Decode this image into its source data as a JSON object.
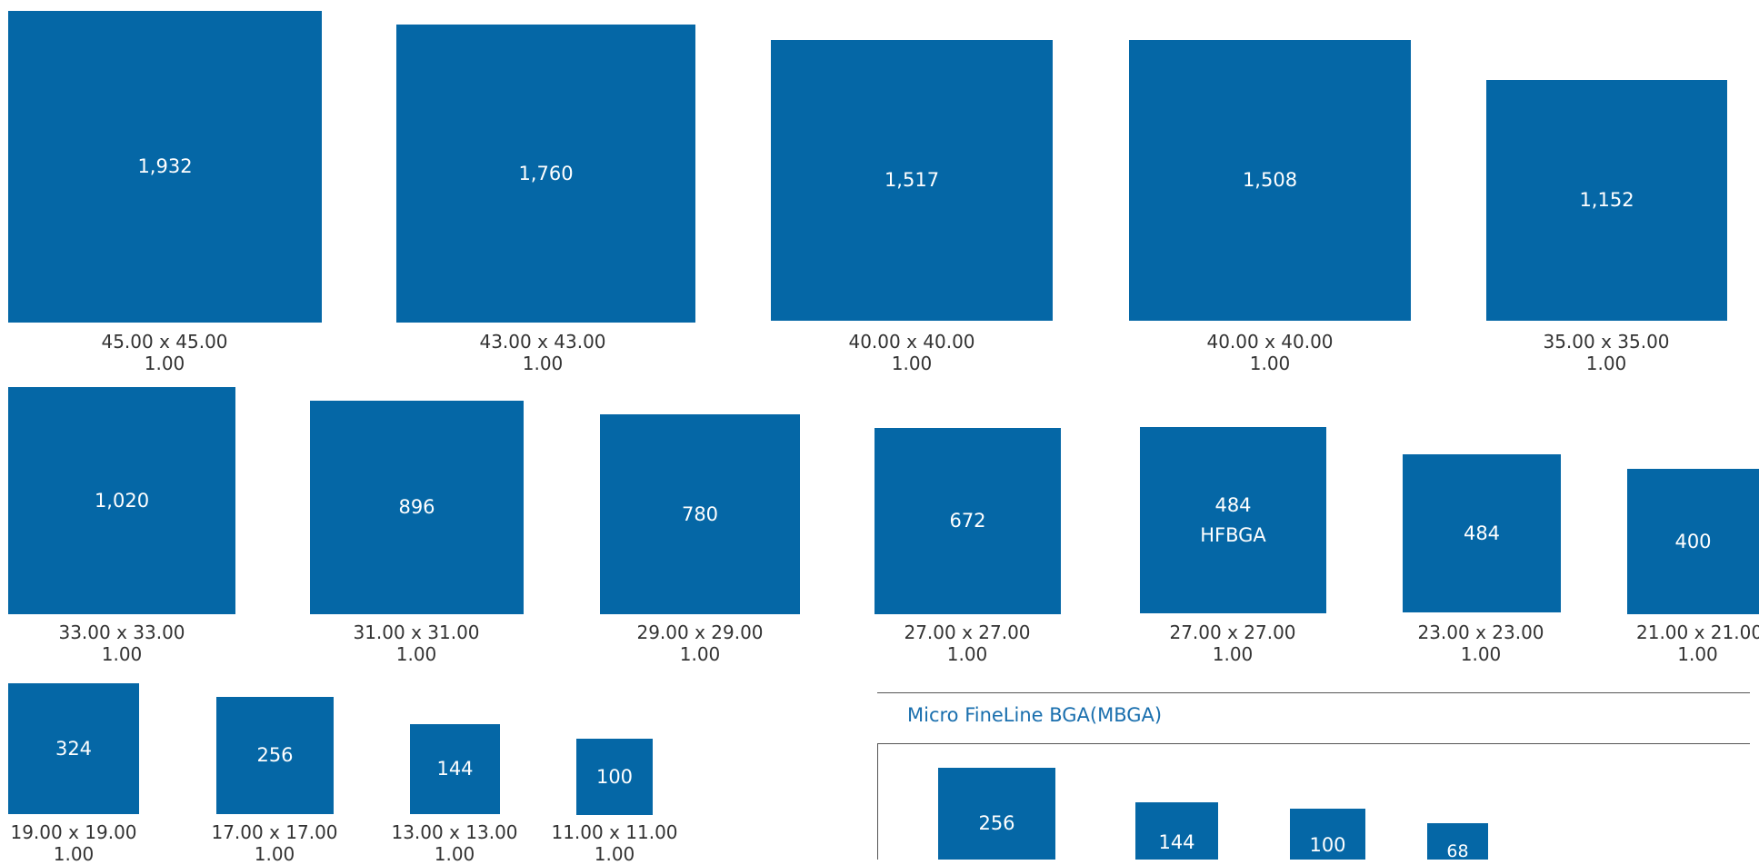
{
  "packages": [
    {
      "id": "p1932",
      "count": "1,932",
      "dims": "45.00 x 45.00",
      "pitch": "1.00"
    },
    {
      "id": "p1760",
      "count": "1,760",
      "dims": "43.00 x 43.00",
      "pitch": "1.00"
    },
    {
      "id": "p1517",
      "count": "1,517",
      "dims": "40.00 x 40.00",
      "pitch": "1.00"
    },
    {
      "id": "p1508",
      "count": "1,508",
      "dims": "40.00 x 40.00",
      "pitch": "1.00"
    },
    {
      "id": "p1152",
      "count": "1,152",
      "dims": "35.00 x 35.00",
      "pitch": "1.00"
    },
    {
      "id": "p1020",
      "count": "1,020",
      "dims": "33.00 x 33.00",
      "pitch": "1.00"
    },
    {
      "id": "p896",
      "count": "896",
      "dims": "31.00 x 31.00",
      "pitch": "1.00"
    },
    {
      "id": "p780",
      "count": "780",
      "dims": "29.00 x 29.00",
      "pitch": "1.00"
    },
    {
      "id": "p672",
      "count": "672",
      "dims": "27.00 x 27.00",
      "pitch": "1.00"
    },
    {
      "id": "p484h",
      "count": "484",
      "sub": "HFBGA",
      "dims": "27.00 x 27.00",
      "pitch": "1.00"
    },
    {
      "id": "p484",
      "count": "484",
      "dims": "23.00 x 23.00",
      "pitch": "1.00"
    },
    {
      "id": "p400",
      "count": "400",
      "dims": "21.00 x 21.00",
      "pitch": "1.00"
    },
    {
      "id": "p324",
      "count": "324",
      "dims": "19.00 x 19.00",
      "pitch": "1.00"
    },
    {
      "id": "p256",
      "count": "256",
      "dims": "17.00 x 17.00",
      "pitch": "1.00"
    },
    {
      "id": "p144",
      "count": "144",
      "dims": "13.00 x 13.00",
      "pitch": "1.00"
    },
    {
      "id": "p100",
      "count": "100",
      "dims": "11.00 x 11.00",
      "pitch": "1.00"
    }
  ],
  "mbga": {
    "title": "Micro FineLine BGA(MBGA)",
    "packages": [
      {
        "id": "m256",
        "count": "256"
      },
      {
        "id": "m144",
        "count": "144"
      },
      {
        "id": "m100",
        "count": "100"
      },
      {
        "id": "m68",
        "count": "68"
      }
    ]
  },
  "colors": {
    "package_fill": "#0567a6",
    "section_title": "#1a6fae"
  }
}
